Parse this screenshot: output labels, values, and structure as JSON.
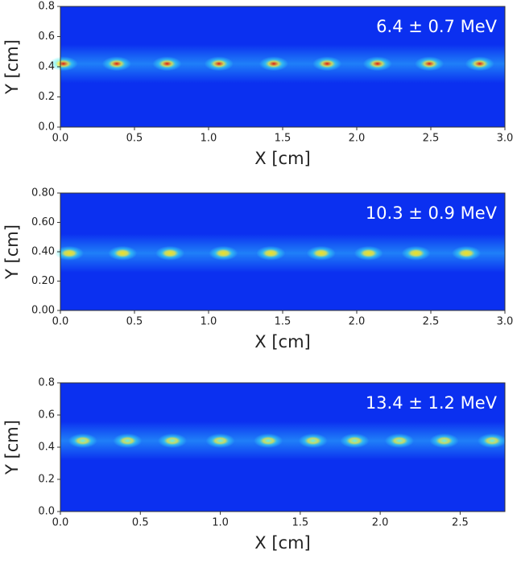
{
  "chart_data": [
    {
      "type": "heatmap",
      "annotation": "6.4 ± 0.7 MeV",
      "xlabel": "X [cm]",
      "ylabel": "Y [cm]",
      "x": [
        0.02,
        0.38,
        0.72,
        1.07,
        1.44,
        1.8,
        2.14,
        2.49,
        2.83
      ],
      "values": [
        0.42,
        0.42,
        0.42,
        0.42,
        0.42,
        0.42,
        0.42,
        0.42,
        0.42
      ],
      "color": "#e01010",
      "background": "#0b30f0",
      "xlim": [
        0,
        3.0
      ],
      "ylim": [
        0,
        0.8
      ],
      "xticks": [
        {
          "value": 0,
          "label": "0.0"
        },
        0.5,
        {
          "value": 1,
          "label": "1.0"
        },
        1.5,
        {
          "value": 2,
          "label": "2.0"
        },
        2.5,
        {
          "value": 3,
          "label": "3.0"
        }
      ],
      "yticks": [
        {
          "value": 0,
          "label": "0.0"
        },
        0.2,
        0.4,
        0.6,
        0.8
      ]
    },
    {
      "type": "heatmap",
      "annotation": "10.3 ± 0.9 MeV",
      "xlabel": "X [cm]",
      "ylabel": "Y [cm]",
      "x": [
        0.06,
        0.42,
        0.74,
        1.1,
        1.42,
        1.76,
        2.08,
        2.4,
        2.74
      ],
      "values": [
        0.39,
        0.39,
        0.39,
        0.39,
        0.39,
        0.39,
        0.39,
        0.39,
        0.39
      ],
      "color": "#f0e020",
      "background": "#0b30f0",
      "xlim": [
        0,
        3.0
      ],
      "ylim": [
        0,
        0.8
      ],
      "xticks": [
        {
          "value": 0,
          "label": "0.0"
        },
        0.5,
        {
          "value": 1,
          "label": "1.0"
        },
        1.5,
        {
          "value": 2,
          "label": "2.0"
        },
        2.5,
        {
          "value": 3,
          "label": "3.0"
        }
      ],
      "yticks": [
        {
          "value": 0,
          "label": "0.00"
        },
        {
          "value": 0.2,
          "label": "0.20"
        },
        {
          "value": 0.4,
          "label": "0.40"
        },
        {
          "value": 0.6,
          "label": "0.60"
        },
        {
          "value": 0.8,
          "label": "0.80"
        }
      ]
    },
    {
      "type": "heatmap",
      "annotation": "13.4 ± 1.2 MeV",
      "xlabel": "X [cm]",
      "ylabel": "Y [cm]",
      "x": [
        0.14,
        0.42,
        0.7,
        1.0,
        1.3,
        1.58,
        1.84,
        2.12,
        2.4,
        2.7
      ],
      "values": [
        0.44,
        0.44,
        0.44,
        0.44,
        0.44,
        0.44,
        0.44,
        0.44,
        0.44,
        0.44
      ],
      "color": "#60f0f0",
      "background": "#0b30f0",
      "xlim": [
        0,
        2.78
      ],
      "ylim": [
        0,
        0.8
      ],
      "xticks": [
        {
          "value": 0,
          "label": "0.0"
        },
        0.5,
        {
          "value": 1,
          "label": "1.0"
        },
        1.5,
        {
          "value": 2,
          "label": "2.0"
        },
        2.5
      ],
      "yticks": [
        {
          "value": 0,
          "label": "0.0"
        },
        0.2,
        0.4,
        0.6,
        0.8
      ]
    }
  ]
}
